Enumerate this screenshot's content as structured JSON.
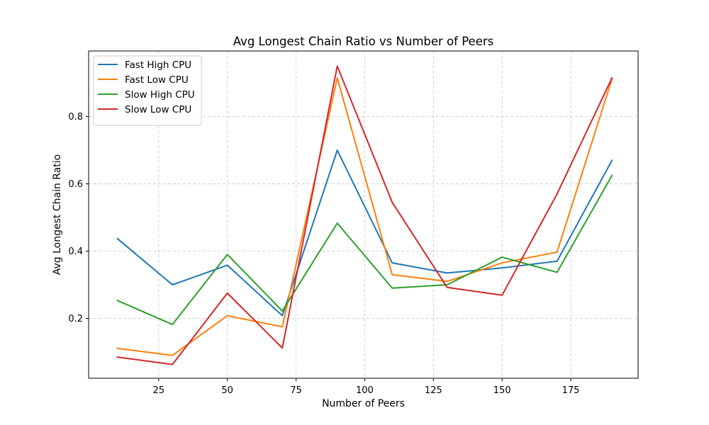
{
  "chart_data": {
    "type": "line",
    "title": "Avg Longest Chain Ratio vs Number of Peers",
    "xlabel": "Number of Peers",
    "ylabel": "Avg Longest Chain Ratio",
    "x": [
      10,
      30,
      50,
      70,
      90,
      110,
      130,
      150,
      170,
      190
    ],
    "xlim": [
      -0.5,
      199.5
    ],
    "ylim": [
      0.022,
      0.995
    ],
    "xticks": [
      25,
      50,
      75,
      100,
      125,
      150,
      175
    ],
    "yticks": [
      0.2,
      0.4,
      0.6,
      0.8
    ],
    "ytick_labels": [
      "0.2",
      "0.4",
      "0.6",
      "0.8"
    ],
    "grid": true,
    "legend_position": "top-left",
    "series": [
      {
        "name": "Fast High CPU",
        "color": "#1f77b4",
        "values": [
          0.437,
          0.3,
          0.358,
          0.208,
          0.7,
          0.365,
          0.335,
          0.35,
          0.37,
          0.67
        ]
      },
      {
        "name": "Fast Low CPU",
        "color": "#ff7f0e",
        "values": [
          0.111,
          0.09,
          0.208,
          0.175,
          0.915,
          0.33,
          0.31,
          0.365,
          0.397,
          0.912
        ]
      },
      {
        "name": "Slow High CPU",
        "color": "#2ca02c",
        "values": [
          0.253,
          0.182,
          0.39,
          0.222,
          0.483,
          0.29,
          0.3,
          0.382,
          0.337,
          0.625
        ]
      },
      {
        "name": "Slow Low CPU",
        "color": "#d62728",
        "values": [
          0.085,
          0.063,
          0.275,
          0.112,
          0.95,
          0.545,
          0.292,
          0.269,
          0.57,
          0.915
        ]
      }
    ]
  }
}
